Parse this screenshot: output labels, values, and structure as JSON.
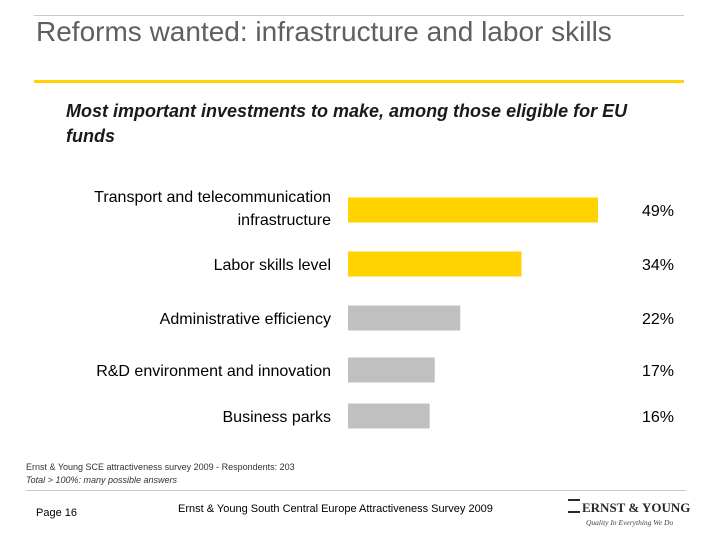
{
  "title": "Reforms wanted: infrastructure and labor skills",
  "subtitle": "Most important investments to make, among those eligible for EU funds",
  "colors": {
    "accent": "#ffd200",
    "secondary": "#c0c0c0",
    "title": "#5f5f5f"
  },
  "chart_data": {
    "type": "bar",
    "orientation": "horizontal",
    "categories": [
      "Transport and telecommunication infrastructure",
      "Labor skills level",
      "Administrative efficiency",
      "R&D environment and innovation",
      "Business parks"
    ],
    "values": [
      49,
      34,
      22,
      17,
      16
    ],
    "value_labels": [
      "49%",
      "34%",
      "22%",
      "17%",
      "16%"
    ],
    "bar_colors": [
      "#ffd200",
      "#ffd200",
      "#c0c0c0",
      "#c0c0c0",
      "#c0c0c0"
    ],
    "xlim": [
      0,
      49
    ],
    "grid": false,
    "legend": "none"
  },
  "source": {
    "line1": "Ernst & Young SCE attractiveness survey 2009 - Respondents: 203",
    "line2": "Total > 100%: many possible answers"
  },
  "footer": {
    "page": "Page 16",
    "text": "Ernst & Young South Central Europe Attractiveness Survey 2009",
    "logo_name": "ERNST & YOUNG",
    "logo_tagline": "Quality In Everything We Do"
  }
}
